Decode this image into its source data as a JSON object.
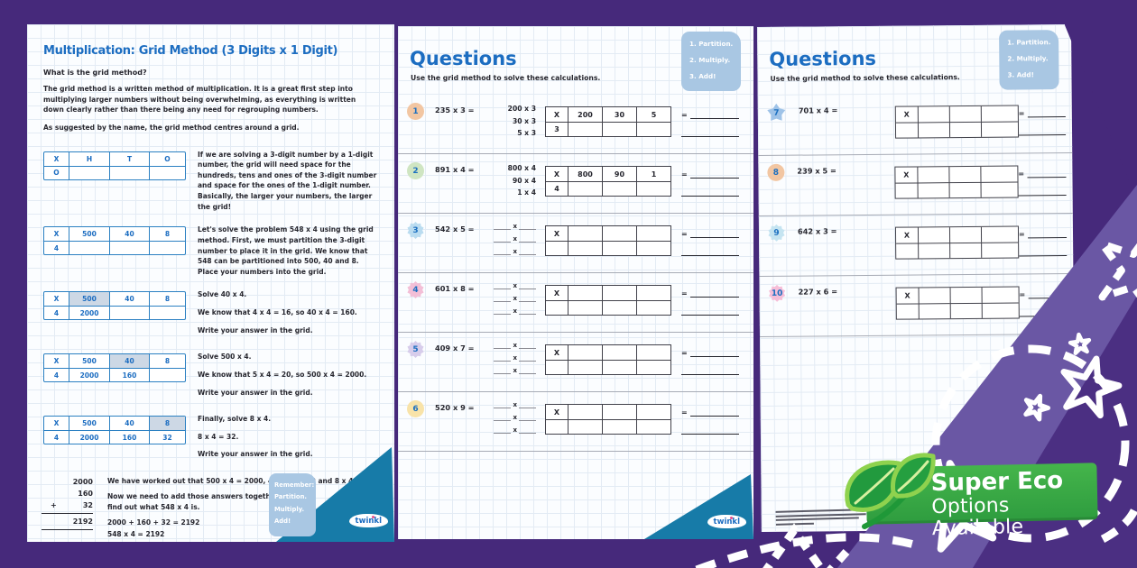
{
  "colors": {
    "accent_blue": "#1c6dc1",
    "grid_blue": "#2b80c2",
    "badge_blue": "#a9c7e3",
    "banner_green": "#36a548",
    "background_purple": "#46297b",
    "wedge_teal": "#177ba8"
  },
  "page1": {
    "title": "Multiplication: Grid Method (3 Digits x 1 Digit)",
    "subheading": "What is the grid method?",
    "intro1": "The grid method is a written method of multiplication. It is a great first step into multiplying larger numbers without being overwhelming, as everything is written down clearly rather than there being any need for regrouping numbers.",
    "intro2": "As suggested by the name, the grid method centres around a grid.",
    "sections": [
      {
        "grid": {
          "top": [
            "X",
            "H",
            "T",
            "O"
          ],
          "bottom": [
            "O",
            "",
            "",
            ""
          ],
          "shaded": -1
        },
        "lines": [
          "If we are solving a 3-digit number by a 1-digit number, the grid will need space for the hundreds, tens and ones of the 3-digit number and space for the ones of the 1-digit number. Basically, the larger your numbers, the larger the grid!"
        ]
      },
      {
        "grid": {
          "top": [
            "X",
            "500",
            "40",
            "8"
          ],
          "bottom": [
            "4",
            "",
            "",
            ""
          ],
          "shaded": -1
        },
        "lines": [
          "Let's solve the problem 548 x 4 using the grid method. First, we must partition the 3-digit number to place it in the grid. We know that 548 can be partitioned into 500, 40 and 8. Place your numbers into the grid."
        ]
      },
      {
        "grid": {
          "top": [
            "X",
            "500",
            "40",
            "8"
          ],
          "bottom": [
            "4",
            "2000",
            "",
            ""
          ],
          "shaded": 1
        },
        "lines": [
          "Solve 40 x 4.",
          "We know that 4 x 4 = 16, so 40 x 4 = 160.",
          "Write your answer in the grid."
        ]
      },
      {
        "grid": {
          "top": [
            "X",
            "500",
            "40",
            "8"
          ],
          "bottom": [
            "4",
            "2000",
            "160",
            ""
          ],
          "shaded": 2
        },
        "lines": [
          "Solve 500 x 4.",
          "We know that 5 x 4 = 20, so 500 x 4 = 2000.",
          "Write your answer in the grid."
        ]
      },
      {
        "grid": {
          "top": [
            "X",
            "500",
            "40",
            "8"
          ],
          "bottom": [
            "4",
            "2000",
            "160",
            "32"
          ],
          "shaded": 3
        },
        "lines": [
          "Finally, solve 8 x 4.",
          "8 x 4 = 32.",
          "Write your answer in the grid."
        ]
      }
    ],
    "addition": {
      "rows": [
        "2000",
        "160",
        "32"
      ],
      "plus_sign": "+",
      "total": "2192"
    },
    "summary": [
      "We have worked out that 500 x 4 = 2000, 40 x 4 = 160 and 8 x 4 = 32.",
      "Now we need to add those answers together to find out what 548 x 4 is.",
      "2000 + 160 + 32 = 2192",
      "548 x 4 = 2192"
    ],
    "remember": [
      "Remember:",
      "Partition.",
      "Multiply.",
      "Add!"
    ]
  },
  "questions_pages": [
    {
      "title": "Questions",
      "instruction": "Use the grid method to solve these calculations.",
      "steps": [
        "1.  Partition.",
        "2.  Multiply.",
        "3.  Add!"
      ],
      "questions": [
        {
          "num": "1",
          "shape": "circle",
          "color": "#f2c6a2",
          "eq": "235 x 3 =",
          "partition": [
            "200 x 3",
            "30 x 3",
            "5 x 3"
          ],
          "grid_top": [
            "X",
            "200",
            "30",
            "5"
          ],
          "grid_bottom": [
            "3",
            "",
            "",
            ""
          ]
        },
        {
          "num": "2",
          "shape": "circle",
          "color": "#cfe5c2",
          "eq": "891 x 4 =",
          "partition": [
            "800 x 4",
            "90 x 4",
            "1 x 4"
          ],
          "grid_top": [
            "X",
            "800",
            "90",
            "1"
          ],
          "grid_bottom": [
            "4",
            "",
            "",
            ""
          ]
        },
        {
          "num": "3",
          "shape": "flower",
          "color": "#badcf0",
          "eq": "542 x 5 =",
          "grid_top": [
            "X",
            "",
            "",
            ""
          ],
          "grid_bottom": [
            "",
            "",
            "",
            ""
          ]
        },
        {
          "num": "4",
          "shape": "flower",
          "color": "#f3bfd7",
          "eq": "601 x 8 =",
          "grid_top": [
            "X",
            "",
            "",
            ""
          ],
          "grid_bottom": [
            "",
            "",
            "",
            ""
          ]
        },
        {
          "num": "5",
          "shape": "flower",
          "color": "#d7cdeb",
          "eq": "409 x 7 =",
          "grid_top": [
            "X",
            "",
            "",
            ""
          ],
          "grid_bottom": [
            "",
            "",
            "",
            ""
          ]
        },
        {
          "num": "6",
          "shape": "circle",
          "color": "#f8e3a9",
          "eq": "520 x 9 =",
          "grid_top": [
            "X",
            "",
            "",
            ""
          ],
          "grid_bottom": [
            "",
            "",
            "",
            ""
          ]
        }
      ]
    },
    {
      "title": "Questions",
      "instruction": "Use the grid method to solve these calculations.",
      "steps": [
        "1.  Partition.",
        "2.  Multiply.",
        "3.  Add!"
      ],
      "questions": [
        {
          "num": "7",
          "shape": "star",
          "color": "#9fc3e8",
          "eq": "701 x 4 =",
          "grid_top": [
            "X",
            "",
            "",
            ""
          ],
          "grid_bottom": [
            "",
            "",
            "",
            ""
          ]
        },
        {
          "num": "8",
          "shape": "circle",
          "color": "#f2c6a2",
          "eq": "239 x 5 =",
          "grid_top": [
            "X",
            "",
            "",
            ""
          ],
          "grid_bottom": [
            "",
            "",
            "",
            ""
          ]
        },
        {
          "num": "9",
          "shape": "flower",
          "color": "#c5e4f1",
          "eq": "642 x 3 =",
          "grid_top": [
            "X",
            "",
            "",
            ""
          ],
          "grid_bottom": [
            "",
            "",
            "",
            ""
          ]
        },
        {
          "num": "10",
          "shape": "flower",
          "color": "#f6bed8",
          "eq": "227 x 6 =",
          "grid_top": [
            "X",
            "",
            "",
            ""
          ],
          "grid_bottom": [
            "",
            "",
            "",
            ""
          ]
        }
      ]
    }
  ],
  "shared": {
    "equals_sign": "=",
    "blank_times": "x"
  },
  "banner": {
    "line1": "Super Eco",
    "line2": "Options Available"
  },
  "logo_text": "twinkl"
}
